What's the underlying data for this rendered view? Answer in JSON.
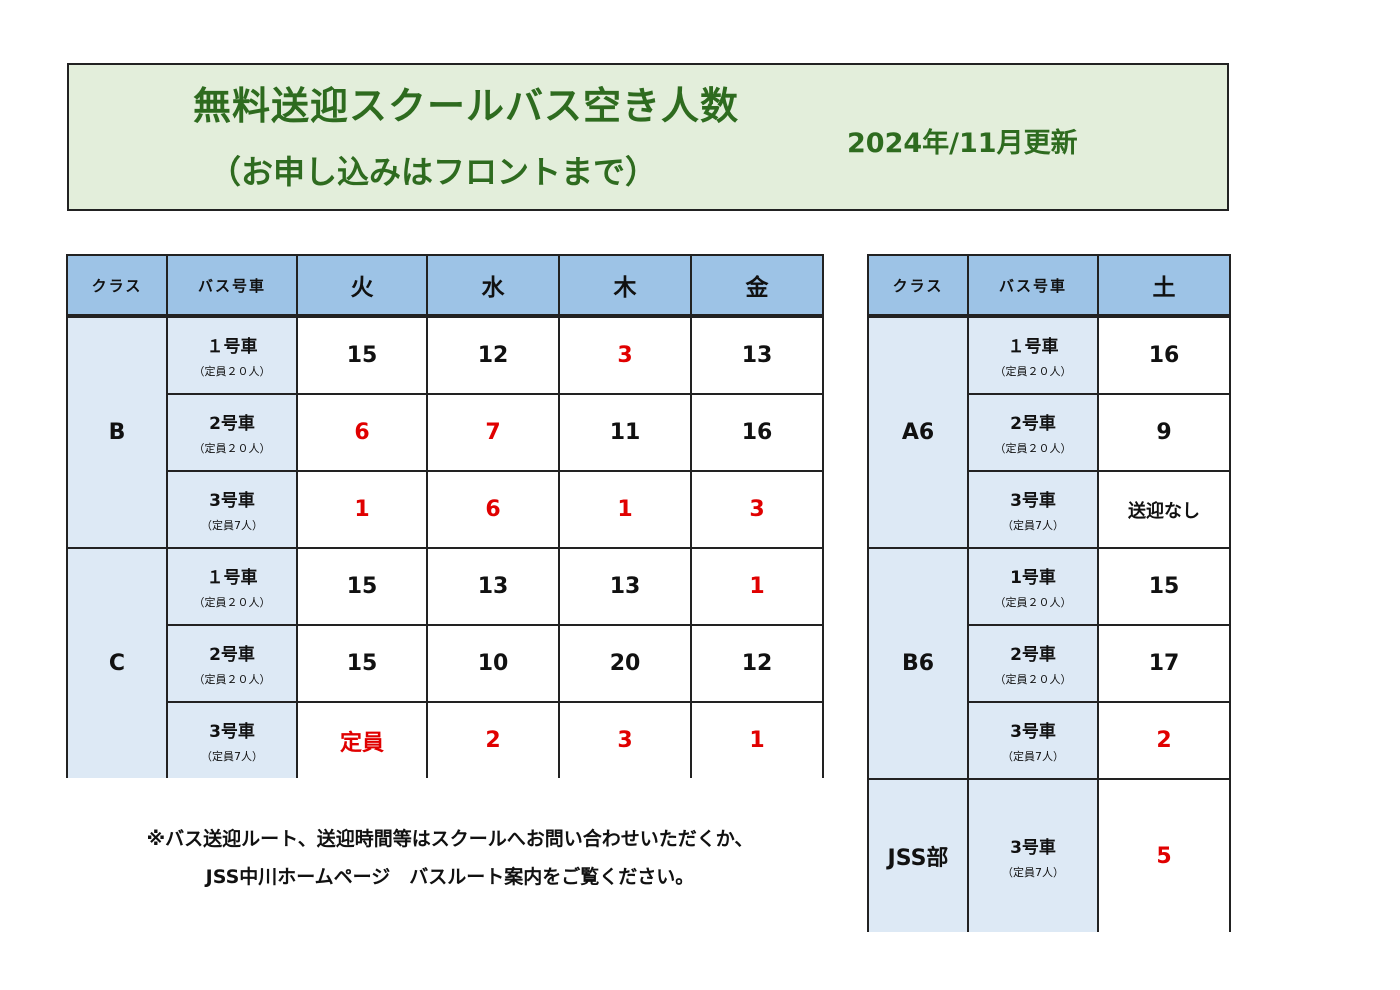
{
  "title": "無料送迎スクールバス空き人数",
  "subtitle": "（お申し込みはフロントまで）",
  "updated": "2024年/11月更新",
  "weekday_table": {
    "headers": [
      "クラス",
      "バス号車",
      "火",
      "水",
      "木",
      "金"
    ],
    "groups": [
      {
        "class": "B",
        "buses": [
          {
            "name": "１号車",
            "capacity": "（定員２０人）",
            "values": [
              {
                "v": "15",
                "red": false
              },
              {
                "v": "12",
                "red": false
              },
              {
                "v": "3",
                "red": true
              },
              {
                "v": "13",
                "red": false
              }
            ]
          },
          {
            "name": "2号車",
            "capacity": "（定員２０人）",
            "values": [
              {
                "v": "6",
                "red": true
              },
              {
                "v": "7",
                "red": true
              },
              {
                "v": "11",
                "red": false
              },
              {
                "v": "16",
                "red": false
              }
            ]
          },
          {
            "name": "3号車",
            "capacity": "（定員7人）",
            "values": [
              {
                "v": "1",
                "red": true
              },
              {
                "v": "6",
                "red": true
              },
              {
                "v": "1",
                "red": true
              },
              {
                "v": "3",
                "red": true
              }
            ]
          }
        ]
      },
      {
        "class": "C",
        "buses": [
          {
            "name": "１号車",
            "capacity": "（定員２０人）",
            "values": [
              {
                "v": "15",
                "red": false
              },
              {
                "v": "13",
                "red": false
              },
              {
                "v": "13",
                "red": false
              },
              {
                "v": "1",
                "red": true
              }
            ]
          },
          {
            "name": "2号車",
            "capacity": "（定員２０人）",
            "values": [
              {
                "v": "15",
                "red": false
              },
              {
                "v": "10",
                "red": false
              },
              {
                "v": "20",
                "red": false
              },
              {
                "v": "12",
                "red": false
              }
            ]
          },
          {
            "name": "3号車",
            "capacity": "（定員7人）",
            "values": [
              {
                "v": "定員",
                "red": true
              },
              {
                "v": "2",
                "red": true
              },
              {
                "v": "3",
                "red": true
              },
              {
                "v": "1",
                "red": true
              }
            ]
          }
        ]
      }
    ]
  },
  "saturday_table": {
    "headers": [
      "クラス",
      "バス号車",
      "土"
    ],
    "groups": [
      {
        "class": "A6",
        "buses": [
          {
            "name": "１号車",
            "capacity": "（定員２０人）",
            "values": [
              {
                "v": "16",
                "red": false
              }
            ]
          },
          {
            "name": "2号車",
            "capacity": "（定員２０人）",
            "values": [
              {
                "v": "9",
                "red": false
              }
            ]
          },
          {
            "name": "3号車",
            "capacity": "（定員7人）",
            "values": [
              {
                "v": "送迎なし",
                "red": false,
                "text": true
              }
            ]
          }
        ]
      },
      {
        "class": "B6",
        "buses": [
          {
            "name": "1号車",
            "capacity": "（定員２０人）",
            "values": [
              {
                "v": "15",
                "red": false
              }
            ]
          },
          {
            "name": "2号車",
            "capacity": "（定員２０人）",
            "values": [
              {
                "v": "17",
                "red": false
              }
            ]
          },
          {
            "name": "3号車",
            "capacity": "（定員7人）",
            "values": [
              {
                "v": "2",
                "red": true
              }
            ]
          }
        ]
      },
      {
        "class": "JSS部",
        "buses": [
          {
            "name": "3号車",
            "capacity": "（定員7人）",
            "values": [
              {
                "v": "5",
                "red": true
              }
            ]
          }
        ]
      }
    ]
  },
  "note": {
    "line1": "※バス送迎ルート、送迎時間等はスクールへお問い合わせいただくか、",
    "line2": "JSS中川ホームページ　バスルート案内をご覧ください。"
  },
  "colors": {
    "title_green": "#2e6b1f",
    "banner_bg": "#e3eedb",
    "header_blue": "#9dc3e6",
    "class_blue": "#dde9f5",
    "alert_red": "#e00000"
  }
}
